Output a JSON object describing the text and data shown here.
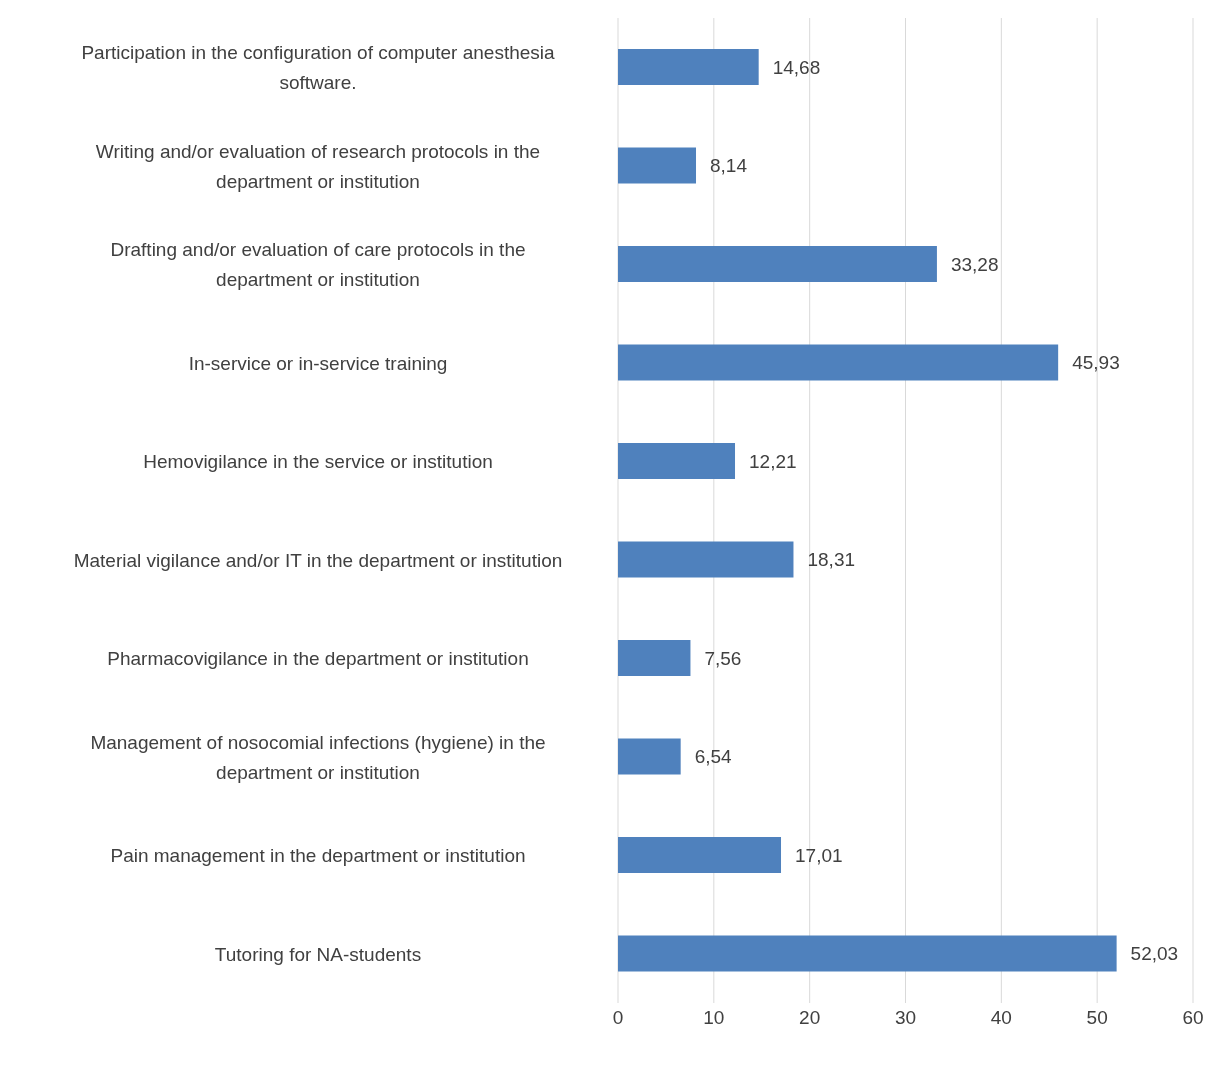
{
  "chart_data": {
    "type": "bar",
    "orientation": "horizontal",
    "categories": [
      "Participation in the configuration of computer anesthesia software.",
      "Writing and/or evaluation of research protocols in the department or institution",
      "Drafting and/or evaluation of care protocols in the department or institution",
      "In-service or in-service training",
      "Hemovigilance in the service or institution",
      "Material vigilance and/or IT in the department or institution",
      "Pharmacovigilance in the department or institution",
      "Management of nosocomial infections (hygiene) in the department or institution",
      "Pain management in the department or institution",
      "Tutoring for NA-students"
    ],
    "values": [
      14.68,
      8.14,
      33.28,
      45.93,
      12.21,
      18.31,
      7.56,
      6.54,
      17.01,
      52.03
    ],
    "value_labels": [
      "14,68",
      "8,14",
      "33,28",
      "45,93",
      "12,21",
      "18,31",
      "7,56",
      "6,54",
      "17,01",
      "52,03"
    ],
    "color": "#4f81bd",
    "xlim": [
      0,
      60
    ],
    "xticks": [
      0,
      10,
      20,
      30,
      40,
      50,
      60
    ],
    "grid": "x"
  }
}
